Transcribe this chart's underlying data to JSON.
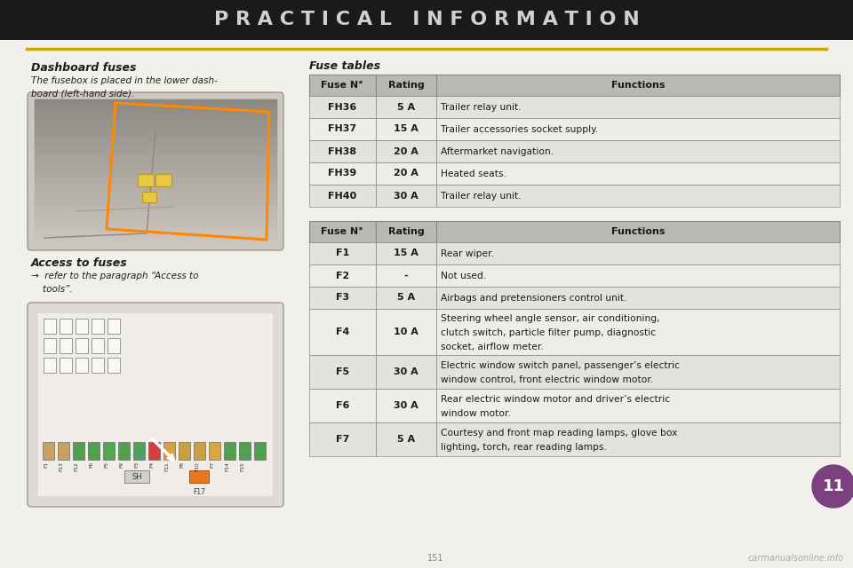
{
  "title": "P R A C T I C A L   I N F O R M A T I O N",
  "page_bg": "#f2f0eb",
  "title_bg": "#1a1a1a",
  "title_color": "#d0d0d0",
  "line_color": "#c8a800",
  "section_left_title": "Dashboard fuses",
  "section_left_body": "The fusebox is placed in the lower dash-\nboard (left-hand side).",
  "access_title": "Access to fuses",
  "access_body": "→  refer to the paragraph “Access to\n    tools”.",
  "fuse_tables_title": "Fuse tables",
  "table1_headers": [
    "Fuse N°",
    "Rating",
    "Functions"
  ],
  "table1_rows": [
    [
      "FH36",
      "5 A",
      "Trailer relay unit."
    ],
    [
      "FH37",
      "15 A",
      "Trailer accessories socket supply."
    ],
    [
      "FH38",
      "20 A",
      "Aftermarket navigation."
    ],
    [
      "FH39",
      "20 A",
      "Heated seats."
    ],
    [
      "FH40",
      "30 A",
      "Trailer relay unit."
    ]
  ],
  "table2_headers": [
    "Fuse N°",
    "Rating",
    "Functions"
  ],
  "table2_rows": [
    [
      "F1",
      "15 A",
      "Rear wiper."
    ],
    [
      "F2",
      "-",
      "Not used."
    ],
    [
      "F3",
      "5 A",
      "Airbags and pretensioners control unit."
    ],
    [
      "F4",
      "10 A",
      "Steering wheel angle sensor, air conditioning,\nclutch switch, particle filter pump, diagnostic\nsocket, airflow meter."
    ],
    [
      "F5",
      "30 A",
      "Electric window switch panel, passenger’s electric\nwindow control, front electric window motor."
    ],
    [
      "F6",
      "30 A",
      "Rear electric window motor and driver’s electric\nwindow motor."
    ],
    [
      "F7",
      "5 A",
      "Courtesy and front map reading lamps, glove box\nlighting, torch, rear reading lamps."
    ]
  ],
  "header_bg": "#b8b8b4",
  "row_even_bg": "#e4e2dc",
  "row_odd_bg": "#ededea",
  "table_border": "#888880",
  "page_number": "11",
  "page_num_bg": "#7a4080",
  "watermark": "carmanualsonline.info",
  "watermark_color": "#aaaaaa",
  "photo_bg": "#ccc8c0",
  "diag_bg": "#dedad4",
  "fuse_strip_colors": [
    "#c8a060",
    "#c8a060",
    "#50a050",
    "#50a050",
    "#50a850",
    "#50a050",
    "#50a060",
    "#d04040",
    "#d8a040",
    "#c8a040",
    "#c8a040",
    "#d8a840",
    "#50a050",
    "#50a050",
    "#50a050"
  ],
  "fuse_labels_bottom": [
    "F1",
    "F13",
    "F12",
    "F6",
    "F5",
    "F9",
    "F3",
    "F4",
    "F11",
    "F8",
    "F10",
    "F7",
    "F14",
    "F15"
  ]
}
